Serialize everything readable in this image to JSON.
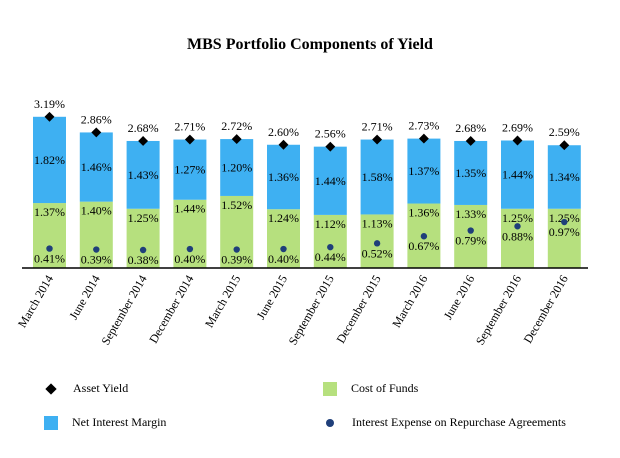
{
  "chart_data": {
    "type": "bar",
    "title": "MBS Portfolio Components of Yield",
    "categories": [
      "March 2014",
      "June 2014",
      "September 2014",
      "December 2014",
      "March 2015",
      "June 2015",
      "September 2015",
      "December 2015",
      "March 2016",
      "June 2016",
      "September 2016",
      "December 2016"
    ],
    "stacked": true,
    "series": [
      {
        "name": "Cost of Funds",
        "kind": "bar",
        "color": "#b6e07e",
        "values": [
          1.37,
          1.4,
          1.25,
          1.44,
          1.52,
          1.24,
          1.12,
          1.13,
          1.36,
          1.33,
          1.25,
          1.25
        ],
        "labels": [
          "1.37%",
          "1.40%",
          "1.25%",
          "1.44%",
          "1.52%",
          "1.24%",
          "1.12%",
          "1.13%",
          "1.36%",
          "1.33%",
          "1.25%",
          "1.25%"
        ]
      },
      {
        "name": "Net Interest Margin",
        "kind": "bar",
        "color": "#3eb0f2",
        "values": [
          1.82,
          1.46,
          1.43,
          1.27,
          1.2,
          1.36,
          1.44,
          1.58,
          1.37,
          1.35,
          1.44,
          1.34
        ],
        "labels": [
          "1.82%",
          "1.46%",
          "1.43%",
          "1.27%",
          "1.20%",
          "1.36%",
          "1.44%",
          "1.58%",
          "1.37%",
          "1.35%",
          "1.44%",
          "1.34%"
        ]
      },
      {
        "name": "Asset Yield",
        "kind": "diamond",
        "color": "#000000",
        "values": [
          3.19,
          2.86,
          2.68,
          2.71,
          2.72,
          2.6,
          2.56,
          2.71,
          2.73,
          2.68,
          2.69,
          2.59
        ],
        "labels": [
          "3.19%",
          "2.86%",
          "2.68%",
          "2.71%",
          "2.72%",
          "2.60%",
          "2.56%",
          "2.71%",
          "2.73%",
          "2.68%",
          "2.69%",
          "2.59%"
        ]
      },
      {
        "name": "Interest Expense on Repurchase Agreements",
        "kind": "dot",
        "color": "#1f3f7a",
        "values": [
          0.41,
          0.39,
          0.38,
          0.4,
          0.39,
          0.4,
          0.44,
          0.52,
          0.67,
          0.79,
          0.88,
          0.97
        ],
        "labels": [
          "0.41%",
          "0.39%",
          "0.38%",
          "0.40%",
          "0.39%",
          "0.40%",
          "0.44%",
          "0.52%",
          "0.67%",
          "0.79%",
          "0.88%",
          "0.97%"
        ]
      }
    ],
    "ylim": [
      0,
      3.5
    ],
    "grid": false,
    "legend_position": "bottom"
  }
}
